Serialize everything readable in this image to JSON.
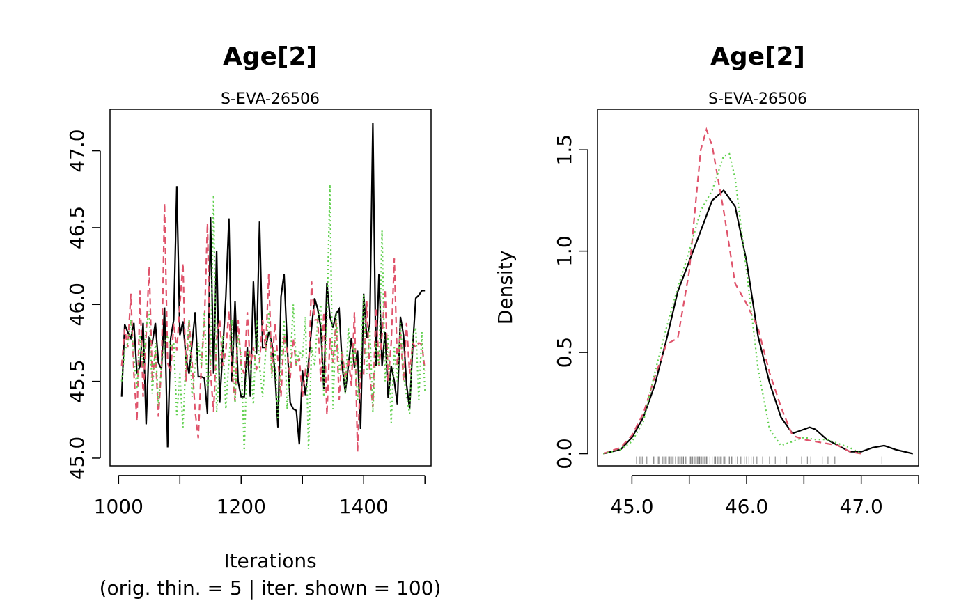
{
  "colors": {
    "chain1": "#000000",
    "chain2": "#DF536B",
    "chain3": "#61D04F",
    "rug": "#777777"
  },
  "chart_data": [
    {
      "type": "line",
      "title": "Age[2]",
      "subtitle": "S-EVA-26506",
      "xlabel": "Iterations",
      "xlabel_sub": "(orig. thin. = 5 | iter. shown = 100)",
      "ylabel": "",
      "xlim": [
        986,
        1510
      ],
      "ylim": [
        44.95,
        47.27
      ],
      "xticks": [
        1000,
        1200,
        1400
      ],
      "xtick_labels": [
        "1000",
        "1200",
        "1400"
      ],
      "yticks": [
        45.0,
        45.5,
        46.0,
        46.5,
        47.0
      ],
      "ytick_labels": [
        "45.0",
        "45.5",
        "46.0",
        "46.5",
        "47.0"
      ],
      "x_start": 1005,
      "x_step": 5,
      "series": [
        {
          "style": "solid",
          "values": [
            45.4,
            45.87,
            45.82,
            45.78,
            45.88,
            45.55,
            45.6,
            45.88,
            45.22,
            45.78,
            45.75,
            45.88,
            45.62,
            45.58,
            45.98,
            45.07,
            45.78,
            45.9,
            46.77,
            45.8,
            45.89,
            45.65,
            45.55,
            45.75,
            45.95,
            45.53,
            45.53,
            45.52,
            45.29,
            46.57,
            45.55,
            46.35,
            45.36,
            45.7,
            46.05,
            46.56,
            45.5,
            46.02,
            45.5,
            45.4,
            45.4,
            45.72,
            45.4,
            46.15,
            45.68,
            46.54,
            45.72,
            45.72,
            45.82,
            45.75,
            45.57,
            45.2,
            46.05,
            46.2,
            45.75,
            45.36,
            45.32,
            45.31,
            45.09,
            45.57,
            45.41,
            45.62,
            45.85,
            46.04,
            45.97,
            45.85,
            45.45,
            46.14,
            45.92,
            45.85,
            45.94,
            45.97,
            45.6,
            45.43,
            45.6,
            45.78,
            45.59,
            45.7,
            45.19,
            46.07,
            45.78,
            45.87,
            47.18,
            45.6,
            46.2,
            45.6,
            45.82,
            45.39,
            45.6,
            45.5,
            45.35,
            45.92,
            45.8,
            45.48,
            45.32,
            45.72,
            46.04,
            46.06,
            46.09,
            46.09
          ]
        },
        {
          "style": "dashed",
          "values": [
            45.6,
            45.84,
            45.72,
            46.07,
            45.55,
            45.24,
            46.09,
            45.4,
            45.8,
            46.25,
            45.5,
            45.7,
            45.27,
            45.6,
            46.66,
            45.62,
            45.56,
            45.88,
            45.7,
            46.0,
            46.27,
            45.5,
            45.9,
            45.62,
            45.3,
            45.13,
            45.6,
            45.88,
            46.53,
            45.56,
            45.3,
            45.78,
            45.9,
            45.6,
            45.7,
            45.96,
            45.57,
            45.37,
            45.9,
            45.6,
            45.55,
            45.95,
            45.6,
            45.72,
            45.58,
            45.62,
            45.9,
            45.7,
            46.2,
            45.55,
            45.88,
            45.64,
            45.4,
            45.8,
            45.7,
            45.52,
            45.78,
            45.6,
            45.65,
            45.4,
            45.57,
            45.53,
            46.15,
            45.9,
            45.9,
            45.5,
            45.95,
            45.28,
            45.78,
            45.62,
            45.9,
            45.38,
            45.7,
            45.51,
            45.65,
            45.47,
            45.95,
            45.04,
            45.57,
            45.55,
            46.02,
            45.55,
            45.33,
            45.98,
            45.6,
            45.8,
            46.1,
            45.5,
            45.75,
            46.3,
            45.6,
            45.82,
            45.5,
            45.88,
            45.55,
            45.75,
            45.72,
            45.75,
            45.74,
            45.57
          ]
        },
        {
          "style": "dotted",
          "values": [
            45.5,
            45.7,
            45.75,
            45.9,
            45.65,
            45.45,
            45.8,
            45.6,
            45.85,
            45.96,
            45.42,
            45.75,
            45.34,
            45.6,
            45.75,
            45.8,
            45.72,
            45.75,
            45.28,
            45.55,
            45.2,
            45.65,
            45.9,
            45.4,
            45.6,
            45.75,
            45.6,
            45.95,
            45.45,
            45.6,
            46.71,
            45.3,
            45.6,
            45.8,
            45.32,
            45.63,
            45.9,
            45.36,
            45.8,
            45.66,
            45.05,
            45.7,
            45.65,
            45.35,
            45.9,
            45.6,
            45.4,
            45.7,
            45.95,
            45.52,
            45.7,
            45.25,
            45.6,
            45.9,
            45.32,
            45.6,
            46.0,
            45.6,
            45.7,
            45.65,
            45.92,
            45.06,
            45.72,
            45.6,
            45.9,
            46.0,
            45.4,
            45.9,
            46.78,
            45.32,
            45.95,
            45.55,
            45.7,
            45.42,
            45.85,
            45.6,
            45.75,
            45.38,
            45.6,
            46.06,
            45.55,
            45.85,
            45.3,
            45.75,
            45.6,
            46.48,
            45.5,
            45.8,
            45.23,
            45.72,
            45.5,
            45.88,
            45.55,
            45.4,
            45.29,
            45.8,
            45.85,
            45.38,
            45.82,
            45.44
          ]
        }
      ]
    },
    {
      "type": "line",
      "title": "Age[2]",
      "subtitle": "S-EVA-26506",
      "xlabel": "",
      "ylabel": "Density",
      "xlim": [
        44.7,
        47.5
      ],
      "ylim": [
        -0.06,
        1.7
      ],
      "xticks": [
        45.0,
        46.0,
        47.0
      ],
      "xtick_labels": [
        "45.0",
        "46.0",
        "47.0"
      ],
      "yticks": [
        0.0,
        0.5,
        1.0,
        1.5
      ],
      "ytick_labels": [
        "0.0",
        "0.5",
        "1.0",
        "1.5"
      ],
      "series": [
        {
          "style": "solid",
          "points": [
            [
              44.75,
              0.0
            ],
            [
              44.9,
              0.02
            ],
            [
              45.0,
              0.08
            ],
            [
              45.1,
              0.18
            ],
            [
              45.2,
              0.34
            ],
            [
              45.3,
              0.56
            ],
            [
              45.4,
              0.8
            ],
            [
              45.5,
              0.95
            ],
            [
              45.6,
              1.1
            ],
            [
              45.7,
              1.25
            ],
            [
              45.8,
              1.3
            ],
            [
              45.9,
              1.22
            ],
            [
              46.0,
              0.95
            ],
            [
              46.1,
              0.58
            ],
            [
              46.2,
              0.35
            ],
            [
              46.3,
              0.18
            ],
            [
              46.4,
              0.1
            ],
            [
              46.5,
              0.12
            ],
            [
              46.55,
              0.13
            ],
            [
              46.6,
              0.12
            ],
            [
              46.7,
              0.07
            ],
            [
              46.8,
              0.04
            ],
            [
              46.9,
              0.01
            ],
            [
              47.0,
              0.01
            ],
            [
              47.1,
              0.03
            ],
            [
              47.2,
              0.04
            ],
            [
              47.3,
              0.02
            ],
            [
              47.45,
              0.0
            ]
          ]
        },
        {
          "style": "dashed",
          "points": [
            [
              44.75,
              0.0
            ],
            [
              44.9,
              0.03
            ],
            [
              45.0,
              0.09
            ],
            [
              45.1,
              0.2
            ],
            [
              45.2,
              0.38
            ],
            [
              45.3,
              0.54
            ],
            [
              45.4,
              0.57
            ],
            [
              45.5,
              0.9
            ],
            [
              45.55,
              1.2
            ],
            [
              45.6,
              1.5
            ],
            [
              45.65,
              1.6
            ],
            [
              45.7,
              1.52
            ],
            [
              45.8,
              1.2
            ],
            [
              45.9,
              0.84
            ],
            [
              46.0,
              0.74
            ],
            [
              46.1,
              0.62
            ],
            [
              46.2,
              0.4
            ],
            [
              46.3,
              0.23
            ],
            [
              46.4,
              0.09
            ],
            [
              46.5,
              0.07
            ],
            [
              46.6,
              0.06
            ],
            [
              46.7,
              0.05
            ],
            [
              46.8,
              0.04
            ],
            [
              46.9,
              0.01
            ],
            [
              47.0,
              0.0
            ]
          ]
        },
        {
          "style": "dotted",
          "points": [
            [
              44.75,
              0.0
            ],
            [
              44.9,
              0.02
            ],
            [
              45.0,
              0.06
            ],
            [
              45.1,
              0.16
            ],
            [
              45.2,
              0.4
            ],
            [
              45.3,
              0.62
            ],
            [
              45.4,
              0.82
            ],
            [
              45.5,
              1.0
            ],
            [
              45.6,
              1.2
            ],
            [
              45.7,
              1.3
            ],
            [
              45.8,
              1.47
            ],
            [
              45.85,
              1.48
            ],
            [
              45.9,
              1.36
            ],
            [
              46.0,
              0.9
            ],
            [
              46.1,
              0.42
            ],
            [
              46.2,
              0.12
            ],
            [
              46.3,
              0.04
            ],
            [
              46.4,
              0.06
            ],
            [
              46.5,
              0.08
            ],
            [
              46.6,
              0.07
            ],
            [
              46.7,
              0.07
            ],
            [
              46.8,
              0.05
            ],
            [
              46.9,
              0.03
            ],
            [
              47.0,
              0.0
            ]
          ]
        }
      ],
      "rug": [
        45.04,
        45.07,
        45.09,
        45.13,
        45.19,
        45.2,
        45.22,
        45.23,
        45.24,
        45.27,
        45.28,
        45.29,
        45.3,
        45.32,
        45.33,
        45.34,
        45.35,
        45.36,
        45.38,
        45.4,
        45.41,
        45.42,
        45.43,
        45.44,
        45.45,
        45.47,
        45.48,
        45.5,
        45.51,
        45.52,
        45.53,
        45.55,
        45.56,
        45.57,
        45.58,
        45.59,
        45.6,
        45.61,
        45.62,
        45.63,
        45.64,
        45.65,
        45.66,
        45.68,
        45.7,
        45.72,
        45.73,
        45.75,
        45.77,
        45.78,
        45.8,
        45.81,
        45.82,
        45.84,
        45.85,
        45.87,
        45.88,
        45.9,
        45.92,
        45.95,
        45.96,
        45.98,
        46.0,
        46.02,
        46.04,
        46.06,
        46.09,
        46.14,
        46.2,
        46.25,
        46.3,
        46.35,
        46.48,
        46.53,
        46.56,
        46.66,
        46.71,
        46.77,
        47.18
      ]
    }
  ]
}
